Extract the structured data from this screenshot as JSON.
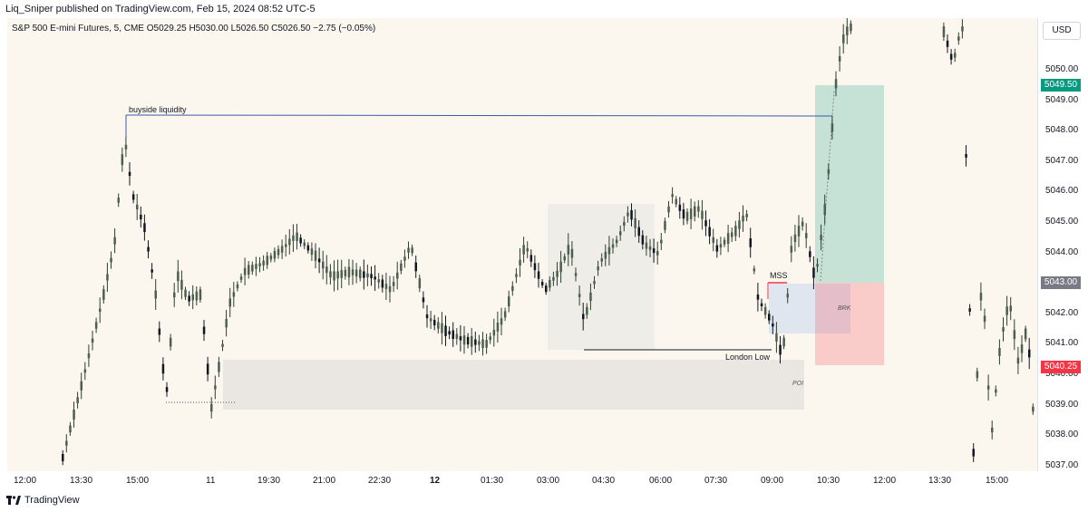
{
  "header": {
    "published_by": "Liq_Sniper published on TradingView.com, Feb 15, 2024 08:52 UTC-5"
  },
  "legend": {
    "symbol_info": "S&P 500 E-mini Futures, 5, CME  O5029.25  H5030.00  L5026.50  C5026.50  −2.75 (−0.05%)"
  },
  "price_axis": {
    "currency": "USD",
    "labels": [
      "5050.00",
      "5049.00",
      "5048.00",
      "5047.00",
      "5046.00",
      "5045.00",
      "5044.00",
      "5042.00",
      "5041.00",
      "5040.00",
      "5039.00",
      "5038.00",
      "5037.00"
    ],
    "badges": [
      {
        "value": "5049.50",
        "color": "#089981"
      },
      {
        "value": "5043.00",
        "color": "#787b86"
      },
      {
        "value": "5040.25",
        "color": "#f23645"
      }
    ]
  },
  "time_axis": {
    "labels": [
      "12:00",
      "13:30",
      "15:00",
      "11",
      "19:30",
      "21:00",
      "22:30",
      "12",
      "01:30",
      "03:00",
      "04:30",
      "06:00",
      "07:30",
      "09:00",
      "10:30",
      "12:00",
      "13:30",
      "15:00"
    ],
    "bold": [
      "12"
    ]
  },
  "annotations": {
    "buyside": "buyside liquidity",
    "mss": "MSS",
    "london_low": "London Low",
    "brk": "BRK",
    "poi": "POI"
  },
  "footer": {
    "brand": "TradingView"
  },
  "colors": {
    "up": "#2f3e2f",
    "down": "#131722",
    "tp_zone": "#089981",
    "sl_zone": "#f23645"
  }
}
